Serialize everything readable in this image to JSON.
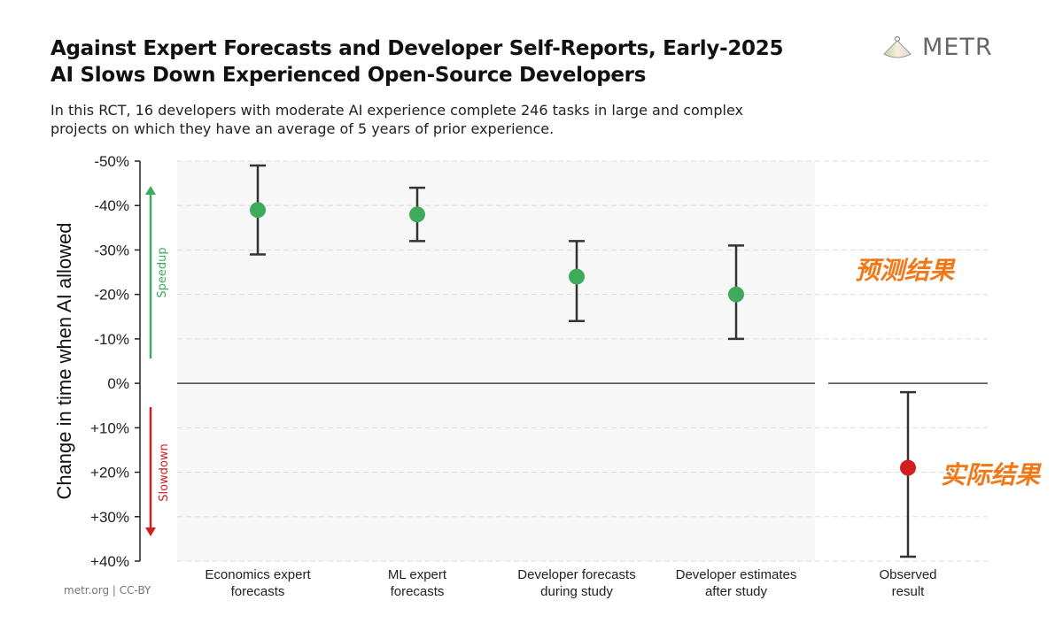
{
  "title_line1": "Against Expert Forecasts and Developer Self-Reports, Early-2025",
  "title_line2": "AI Slows Down Experienced Open-Source Developers",
  "subtitle_line1": "In this RCT, 16 developers with moderate AI experience complete 246 tasks in large and complex",
  "subtitle_line2": "projects on which they have an average of 5 years of prior experience.",
  "logo_text": "METR",
  "footer": "metr.org  |  CC-BY",
  "annotations": {
    "forecast": "预测结果",
    "actual": "实际结果",
    "speedup": "Speedup",
    "slowdown": "Slowdown"
  },
  "colors": {
    "forecast": "#3daa5c",
    "observed": "#d11f1f",
    "speedup": "#3daa5c",
    "slowdown": "#d11f1f",
    "annotation": "#f07818"
  },
  "chart_data": {
    "type": "scatter",
    "ylabel": "Change in time when AI allowed",
    "ylim": [
      -50,
      40
    ],
    "yticks": [
      -50,
      -40,
      -30,
      -20,
      -10,
      0,
      10,
      20,
      30,
      40
    ],
    "ytick_labels": [
      "-50%",
      "-40%",
      "-30%",
      "-20%",
      "-10%",
      "0%",
      "+10%",
      "+20%",
      "+30%",
      "+40%"
    ],
    "grid": true,
    "categories": [
      [
        "Economics expert",
        "forecasts"
      ],
      [
        "ML expert",
        "forecasts"
      ],
      [
        "Developer forecasts",
        "during study"
      ],
      [
        "Developer estimates",
        "after study"
      ],
      [
        "Observed",
        "result"
      ]
    ],
    "values": [
      -39,
      -38,
      -24,
      -20,
      19
    ],
    "ci_low": [
      -49,
      -44,
      -32,
      -31,
      2
    ],
    "ci_high": [
      -29,
      -32,
      -14,
      -10,
      39
    ]
  }
}
